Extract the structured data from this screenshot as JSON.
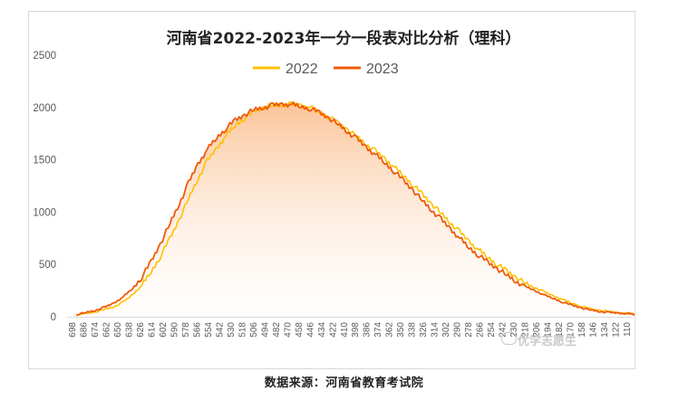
{
  "chart_data": {
    "type": "line",
    "title": "河南省2022-2023年一分一段表对比分析（理科）",
    "xlabel": "",
    "ylabel": "",
    "ylim": [
      0,
      2500
    ],
    "y_ticks": [
      0,
      500,
      1000,
      1500,
      2000,
      2500
    ],
    "x_reversed": true,
    "x_range": [
      710,
      105
    ],
    "x_tick_labels": [
      "698",
      "686",
      "674",
      "662",
      "650",
      "638",
      "626",
      "614",
      "602",
      "590",
      "578",
      "566",
      "554",
      "542",
      "530",
      "518",
      "506",
      "494",
      "482",
      "470",
      "458",
      "446",
      "434",
      "422",
      "410",
      "398",
      "386",
      "374",
      "362",
      "350",
      "338",
      "326",
      "314",
      "302",
      "290",
      "278",
      "266",
      "254",
      "242",
      "230",
      "218",
      "206",
      "194",
      "182",
      "170",
      "158",
      "146",
      "134",
      "122",
      "110"
    ],
    "legend_position": "top-center",
    "grid": false,
    "series": [
      {
        "name": "2022",
        "color": "#ffc000",
        "x": [
          700,
          690,
          680,
          670,
          660,
          650,
          640,
          630,
          620,
          610,
          600,
          590,
          580,
          570,
          560,
          550,
          540,
          530,
          520,
          510,
          500,
          490,
          480,
          470,
          460,
          450,
          440,
          430,
          420,
          410,
          400,
          390,
          380,
          370,
          360,
          350,
          340,
          330,
          320,
          310,
          300,
          290,
          280,
          270,
          260,
          250,
          240,
          230,
          220,
          210,
          200,
          190,
          180,
          170,
          160,
          150,
          140,
          130,
          120,
          110,
          103
        ],
        "values": [
          15,
          30,
          45,
          70,
          95,
          140,
          210,
          300,
          430,
          580,
          750,
          930,
          1130,
          1320,
          1490,
          1610,
          1730,
          1830,
          1900,
          1960,
          2000,
          2020,
          2030,
          2030,
          2020,
          2000,
          1960,
          1910,
          1850,
          1790,
          1720,
          1650,
          1580,
          1510,
          1430,
          1350,
          1260,
          1170,
          1080,
          990,
          900,
          810,
          720,
          640,
          570,
          500,
          440,
          380,
          320,
          280,
          240,
          200,
          165,
          130,
          100,
          75,
          60,
          50,
          40,
          30,
          25
        ]
      },
      {
        "name": "2023",
        "color": "#f05a0a",
        "x": [
          700,
          690,
          680,
          670,
          660,
          650,
          640,
          630,
          620,
          610,
          600,
          590,
          580,
          570,
          560,
          550,
          540,
          530,
          520,
          510,
          500,
          490,
          480,
          470,
          460,
          450,
          440,
          430,
          420,
          410,
          400,
          390,
          380,
          370,
          360,
          350,
          340,
          330,
          320,
          310,
          300,
          290,
          280,
          270,
          260,
          250,
          240,
          230,
          220,
          210,
          200,
          190,
          180,
          170,
          160,
          150,
          140,
          130,
          120,
          110,
          103
        ],
        "values": [
          20,
          40,
          60,
          90,
          130,
          190,
          270,
          380,
          530,
          700,
          890,
          1080,
          1280,
          1460,
          1600,
          1710,
          1800,
          1880,
          1930,
          1980,
          2000,
          2020,
          2030,
          2030,
          2010,
          1990,
          1950,
          1900,
          1840,
          1770,
          1700,
          1620,
          1550,
          1470,
          1390,
          1300,
          1210,
          1110,
          1020,
          930,
          840,
          750,
          660,
          590,
          520,
          460,
          400,
          340,
          290,
          250,
          210,
          175,
          140,
          110,
          85,
          65,
          50,
          40,
          35,
          30,
          22
        ]
      }
    ]
  },
  "caption": "数据来源：河南省教育考试院",
  "watermark": "优学志愿生"
}
